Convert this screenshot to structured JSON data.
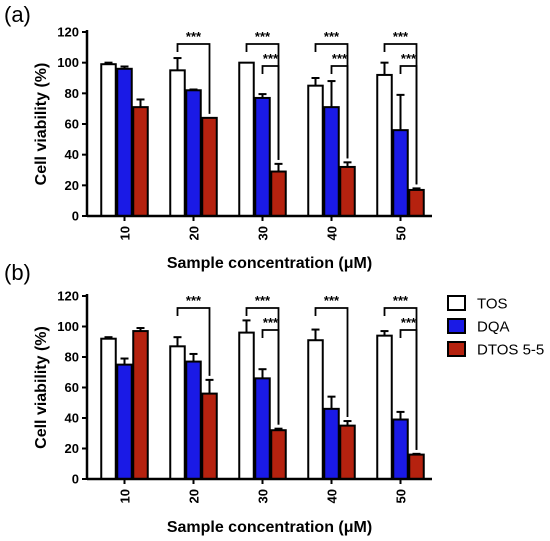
{
  "figure": {
    "legend": [
      {
        "name": "TOS",
        "color": "#ffffff"
      },
      {
        "name": "DQA",
        "color": "#1a1ae6"
      },
      {
        "name": "DTOS 5-5",
        "color": "#b5220f"
      }
    ],
    "legend_placement": "right of panel b"
  },
  "chart_data": [
    {
      "type": "bar",
      "panel": "(a)",
      "categories": [
        "10",
        "20",
        "30",
        "40",
        "50"
      ],
      "xlabel": "Sample concentration (μM)",
      "ylabel": "Cell viability (%)",
      "ylim": [
        0,
        120
      ],
      "yticks": [
        "0",
        "20",
        "40",
        "60",
        "80",
        "100",
        "120"
      ],
      "series": [
        {
          "name": "TOS",
          "values": [
            99,
            95,
            100,
            85,
            92
          ],
          "errors": [
            1,
            8,
            0,
            5,
            8
          ]
        },
        {
          "name": "DQA",
          "values": [
            96,
            82,
            77,
            71,
            56
          ],
          "errors": [
            1.5,
            0.5,
            2.5,
            17,
            23
          ]
        },
        {
          "name": "DTOS 5-5",
          "values": [
            71,
            64,
            29,
            32,
            17
          ],
          "errors": [
            5,
            0,
            5,
            3,
            1
          ]
        }
      ],
      "significance": [
        {
          "label": "***",
          "cat": 1,
          "from": 0,
          "to": 2,
          "level": 0
        },
        {
          "label": "***",
          "cat": 2,
          "from": 0,
          "to": 2,
          "level": 0
        },
        {
          "label": "***",
          "cat": 2,
          "from": 1,
          "to": 2,
          "level": 1
        },
        {
          "label": "***",
          "cat": 3,
          "from": 0,
          "to": 2,
          "level": 0
        },
        {
          "label": "***",
          "cat": 3,
          "from": 1,
          "to": 2,
          "level": 1
        },
        {
          "label": "***",
          "cat": 4,
          "from": 0,
          "to": 2,
          "level": 0
        },
        {
          "label": "***",
          "cat": 4,
          "from": 1,
          "to": 2,
          "level": 1
        }
      ]
    },
    {
      "type": "bar",
      "panel": "(b)",
      "categories": [
        "10",
        "20",
        "30",
        "40",
        "50"
      ],
      "xlabel": "Sample concentration (μM)",
      "ylabel": "Cell viability (%)",
      "ylim": [
        0,
        120
      ],
      "yticks": [
        "0",
        "20",
        "40",
        "60",
        "80",
        "100",
        "120"
      ],
      "series": [
        {
          "name": "TOS",
          "values": [
            92,
            87,
            96,
            91,
            94
          ],
          "errors": [
            1,
            6,
            8,
            7,
            3
          ]
        },
        {
          "name": "DQA",
          "values": [
            75,
            77,
            66,
            46,
            39
          ],
          "errors": [
            4,
            5,
            6,
            8,
            5
          ]
        },
        {
          "name": "DTOS 5-5",
          "values": [
            97,
            56,
            32,
            35,
            16
          ],
          "errors": [
            2,
            9,
            1,
            3,
            0.5
          ]
        }
      ],
      "significance": [
        {
          "label": "***",
          "cat": 1,
          "from": 0,
          "to": 2,
          "level": 0
        },
        {
          "label": "***",
          "cat": 2,
          "from": 0,
          "to": 2,
          "level": 0
        },
        {
          "label": "***",
          "cat": 2,
          "from": 1,
          "to": 2,
          "level": 1
        },
        {
          "label": "***",
          "cat": 3,
          "from": 0,
          "to": 2,
          "level": 0
        },
        {
          "label": "***",
          "cat": 4,
          "from": 0,
          "to": 2,
          "level": 0
        },
        {
          "label": "***",
          "cat": 4,
          "from": 1,
          "to": 2,
          "level": 1
        }
      ]
    }
  ]
}
